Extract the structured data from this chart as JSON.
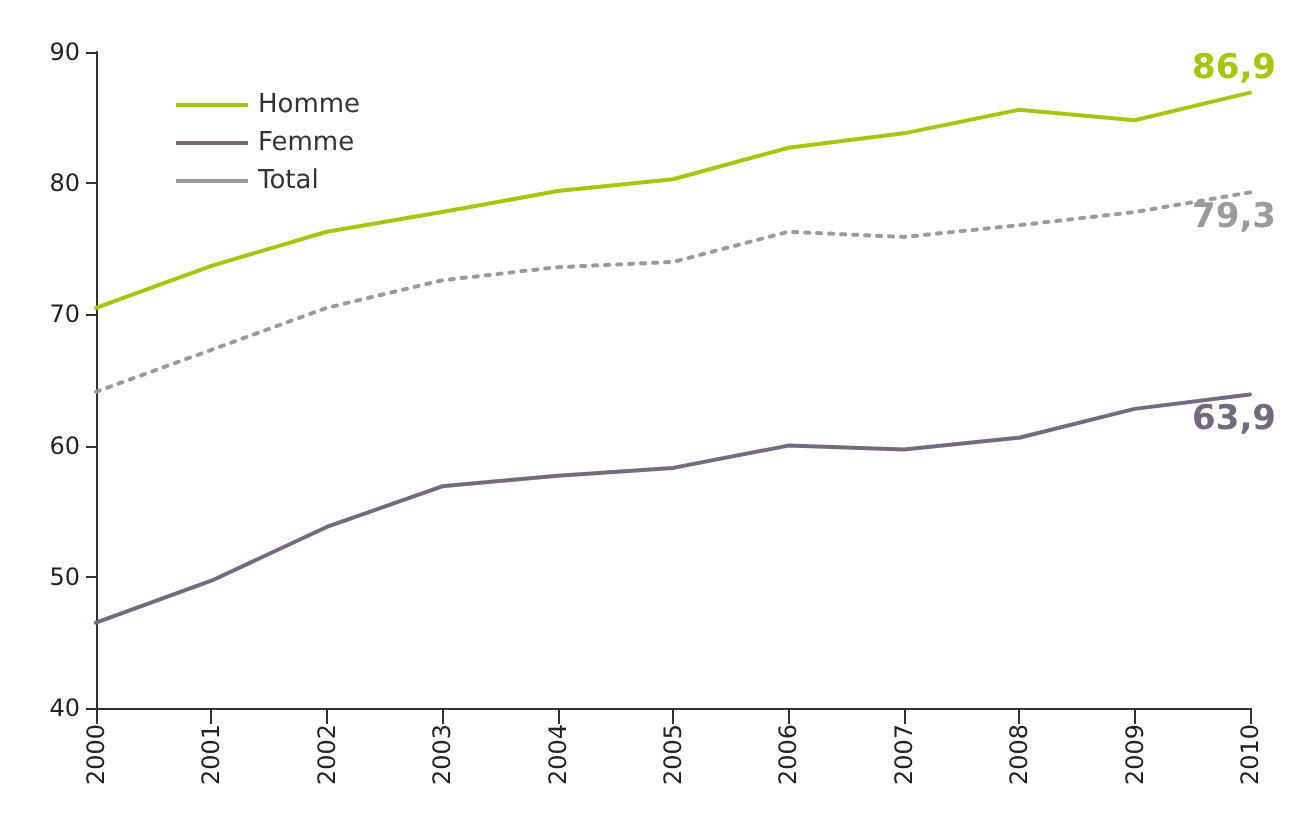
{
  "chart_data": {
    "type": "line",
    "categories": [
      "2000",
      "2001",
      "2002",
      "2003",
      "2004",
      "2005",
      "2006",
      "2007",
      "2008",
      "2009",
      "2010"
    ],
    "series": [
      {
        "name": "Homme",
        "color": "#a8c40c",
        "line_style": "solid",
        "values": [
          70.5,
          73.7,
          76.3,
          77.8,
          79.4,
          80.3,
          82.7,
          83.8,
          85.6,
          84.8,
          86.9
        ],
        "value_labels": [
          null,
          null,
          null,
          null,
          null,
          null,
          null,
          null,
          null,
          null,
          "86,9"
        ]
      },
      {
        "name": "Femme",
        "color": "#76687e",
        "line_style": "solid",
        "values": [
          46.5,
          49.7,
          53.8,
          56.9,
          57.7,
          58.3,
          60.0,
          59.7,
          60.6,
          62.8,
          63.9
        ],
        "value_labels": [
          null,
          null,
          null,
          null,
          null,
          null,
          null,
          null,
          null,
          null,
          "63,9"
        ]
      },
      {
        "name": "Total",
        "color": "#9a9a9a",
        "line_style": "dotted",
        "values": [
          64.1,
          67.3,
          70.5,
          72.6,
          73.6,
          74.0,
          76.3,
          75.9,
          76.8,
          77.8,
          79.3
        ],
        "value_labels": [
          null,
          null,
          null,
          null,
          null,
          null,
          null,
          null,
          null,
          null,
          "79,3"
        ]
      }
    ],
    "ylim": [
      40,
      90
    ],
    "yticks": [
      40,
      50,
      60,
      70,
      80,
      90
    ],
    "grid": false,
    "legend": "top left",
    "marker": "none"
  }
}
